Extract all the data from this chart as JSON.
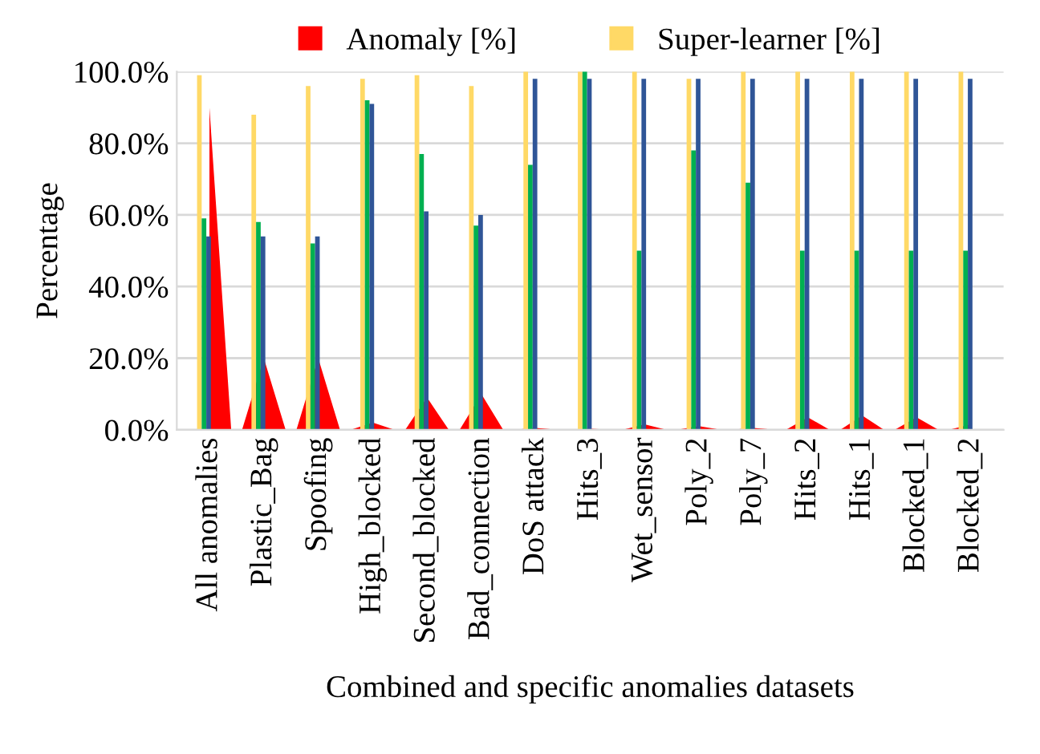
{
  "chart_data": {
    "type": "bar",
    "xlabel": "Combined and specific anomalies datasets",
    "ylabel": "Percentage",
    "categories": [
      "All anomalies",
      "Plastic_Bag",
      "Spoofing",
      "High_blocked",
      "Second_blocked",
      "Bad_connection",
      "DoS attack",
      "Hits_3",
      "Wet_sensor",
      "Poly_2",
      "Poly_7",
      "Hits_2",
      "Hits_1",
      "Blocked_1",
      "Blocked_2"
    ],
    "series": [
      {
        "name": "Anomaly [%]",
        "type": "area",
        "color": "#ff0000",
        "values": [
          90,
          20,
          20,
          2,
          9,
          10,
          0.5,
          0.3,
          1.5,
          1,
          0.5,
          3.5,
          4,
          3.5,
          1.5
        ]
      },
      {
        "name": "Super-learner [%]",
        "color": "#ffd966",
        "values": [
          99,
          88,
          96,
          98,
          99,
          96,
          100,
          100,
          100,
          98,
          100,
          100,
          100,
          100,
          100
        ]
      },
      {
        "color": "#00b050",
        "values": [
          59,
          58,
          52,
          92,
          77,
          57,
          74,
          100,
          50,
          78,
          69,
          50,
          50,
          50,
          50
        ]
      },
      {
        "color": "#2f5597",
        "values": [
          54,
          54,
          54,
          91,
          61,
          60,
          98,
          98,
          98,
          98,
          98,
          98,
          98,
          98,
          98
        ]
      }
    ],
    "ylim": [
      0,
      100
    ],
    "yticks": [
      {
        "value": 0,
        "label": "0.0%"
      },
      {
        "value": 20,
        "label": "20.0%"
      },
      {
        "value": 40,
        "label": "40.0%"
      },
      {
        "value": 60,
        "label": "60.0%"
      },
      {
        "value": 80,
        "label": "80.0%"
      },
      {
        "value": 100,
        "label": "100.0%"
      }
    ],
    "grid": "y",
    "legend": "top"
  }
}
